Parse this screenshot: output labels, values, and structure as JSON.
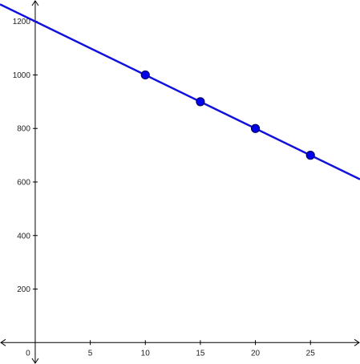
{
  "chart_data": {
    "type": "line",
    "title": "",
    "xlabel": "",
    "ylabel": "",
    "xlim": [
      -3.2,
      29.5
    ],
    "ylim": [
      -80,
      1280
    ],
    "x_ticks": [
      {
        "value": 5,
        "label": "5"
      },
      {
        "value": 10,
        "label": "10"
      },
      {
        "value": 15,
        "label": "15"
      },
      {
        "value": 20,
        "label": "20"
      },
      {
        "value": 25,
        "label": "25"
      }
    ],
    "y_ticks": [
      {
        "value": 200,
        "label": "200"
      },
      {
        "value": 400,
        "label": "400"
      },
      {
        "value": 600,
        "label": "600"
      },
      {
        "value": 800,
        "label": "800"
      },
      {
        "value": 1000,
        "label": "1000"
      },
      {
        "value": 1200,
        "label": "1200"
      }
    ],
    "origin_label": "0",
    "grid": false,
    "line": {
      "slope": -20,
      "intercept": 1200
    },
    "points": [
      {
        "x": 10,
        "y": 1000
      },
      {
        "x": 15,
        "y": 900
      },
      {
        "x": 20,
        "y": 800
      },
      {
        "x": 25,
        "y": 700
      }
    ],
    "colors": {
      "line": "#1111dd",
      "point_fill": "#0000ee",
      "point_stroke": "#000066",
      "axis": "#000000"
    }
  }
}
